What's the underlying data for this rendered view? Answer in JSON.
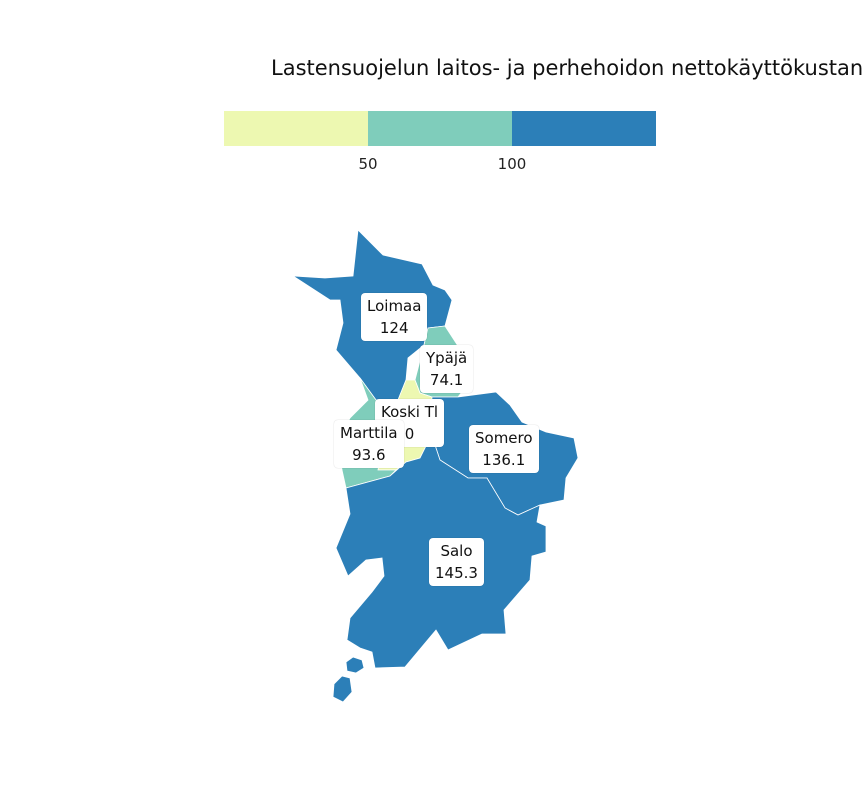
{
  "title": "Lastensuojelun laitos- ja perhehoidon nettokäyttökustann",
  "legend": {
    "colors": [
      "#edf8b1",
      "#7fcdbb",
      "#2c7fb8"
    ],
    "ticks": [
      "50",
      "100"
    ]
  },
  "regions": [
    {
      "name": "Loimaa",
      "value": "124",
      "color": "#2c7fb8"
    },
    {
      "name": "Ypäjä",
      "value": "74.1",
      "color": "#7fcdbb"
    },
    {
      "name": "Koski Tl",
      "value": "0",
      "color": "#edf8b1"
    },
    {
      "name": "Marttila",
      "value": "93.6",
      "color": "#7fcdbb"
    },
    {
      "name": "Somero",
      "value": "136.1",
      "color": "#2c7fb8"
    },
    {
      "name": "Salo",
      "value": "145.3",
      "color": "#2c7fb8"
    }
  ]
}
